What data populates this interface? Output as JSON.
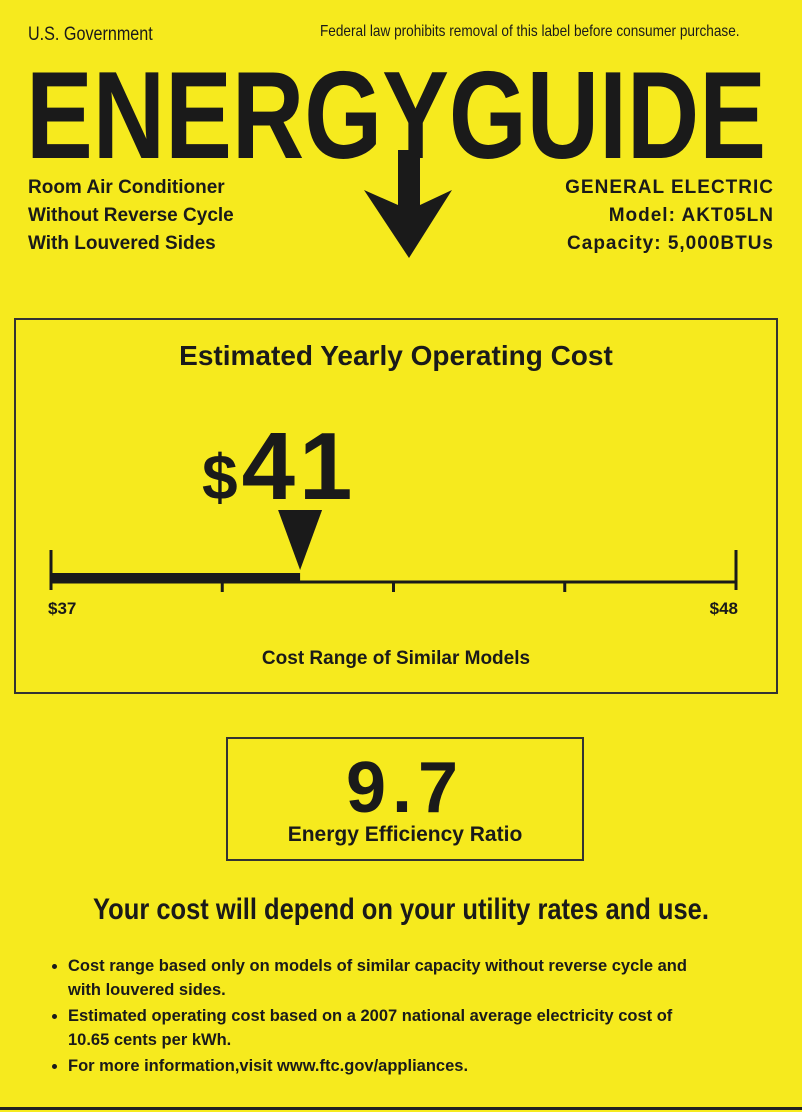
{
  "header": {
    "agency": "U.S. Government",
    "notice": "Federal law prohibits removal of this label before consumer purchase.",
    "title": "ENERGYGUIDE"
  },
  "product": {
    "lines": [
      "Room Air Conditioner",
      "Without Reverse Cycle",
      "With Louvered Sides"
    ],
    "manufacturer": "GENERAL ELECTRIC",
    "model": "Model: AKT05LN",
    "capacity": "Capacity: 5,000BTUs"
  },
  "cost": {
    "heading": "Estimated Yearly Operating Cost",
    "value": {
      "value": 41,
      "label": "$41"
    },
    "min": {
      "value": 37,
      "label": "$37"
    },
    "max": {
      "value": 48,
      "label": "$48"
    },
    "range_caption": "Cost Range of Similar Models"
  },
  "ratio": {
    "value": "9.7",
    "caption": "Energy Efficiency Ratio"
  },
  "disclaimer": "Your cost will depend on your utility rates and use.",
  "notes": [
    "Cost range based only on models of similar capacity without reverse cycle and with louvered sides.",
    "Estimated operating cost based on a 2007 national average electricity cost of 10.65 cents per kWh.",
    "For more information,visit www.ftc.gov/appliances."
  ]
}
